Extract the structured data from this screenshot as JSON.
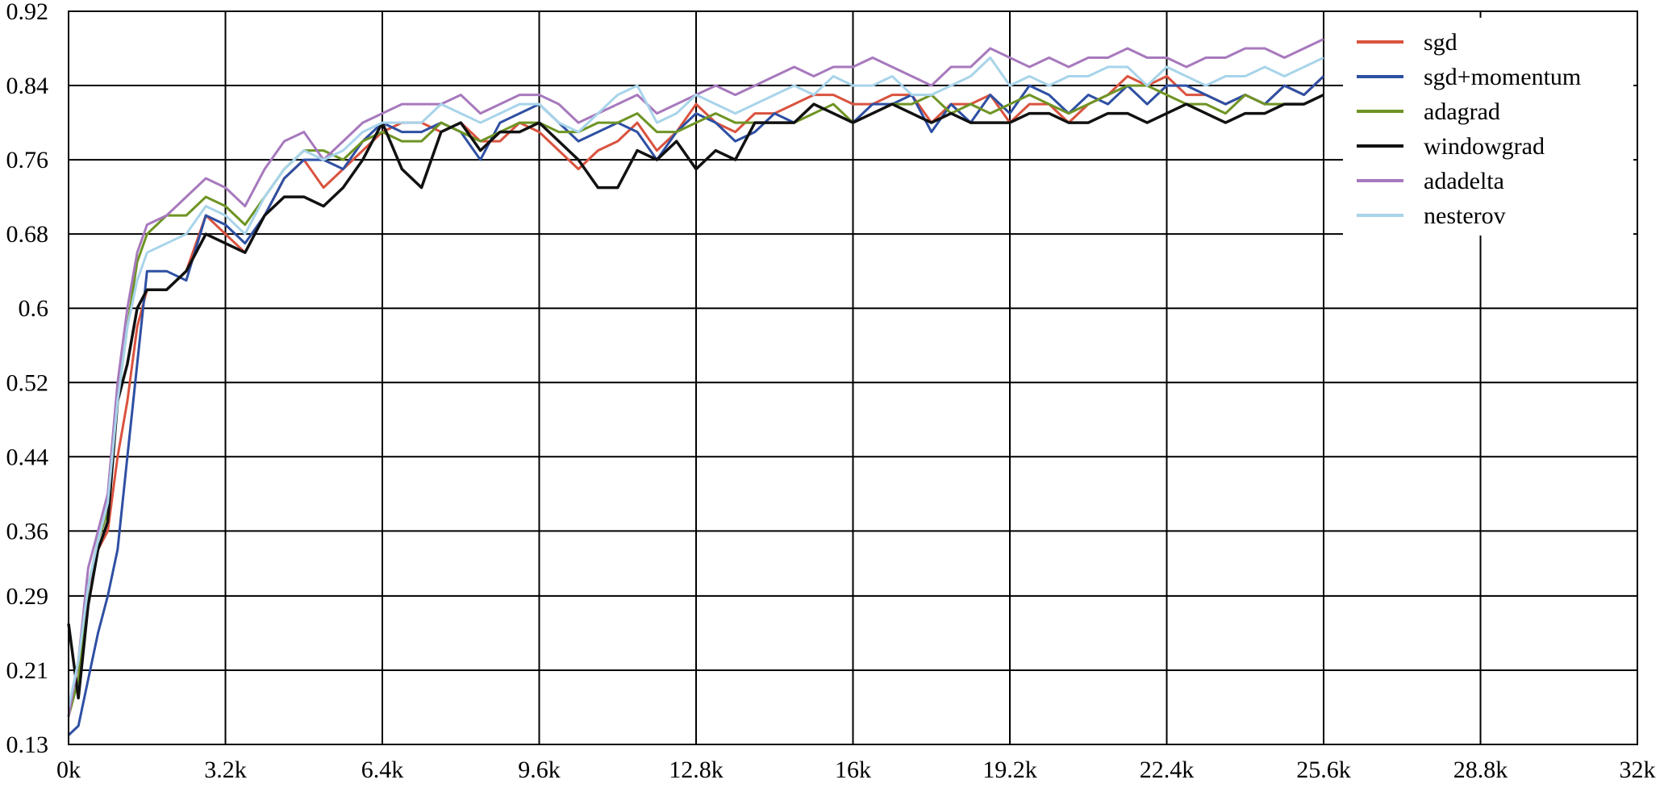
{
  "chart_data": {
    "type": "line",
    "title": "",
    "xlabel": "",
    "ylabel": "",
    "xlim": [
      0,
      32000
    ],
    "ylim": [
      0.13,
      0.92
    ],
    "grid": true,
    "legend_placement": "top-right",
    "x_tick_values": [
      0,
      3200,
      6400,
      9600,
      12800,
      16000,
      19200,
      22400,
      25600,
      28800,
      32000
    ],
    "x_tick_labels": [
      "0k",
      "3.2k",
      "6.4k",
      "9.6k",
      "12.8k",
      "16k",
      "19.2k",
      "22.4k",
      "25.6k",
      "28.8k",
      "32k"
    ],
    "y_tick_values": [
      0.13,
      0.21,
      0.29,
      0.36,
      0.44,
      0.52,
      0.6,
      0.68,
      0.76,
      0.84,
      0.92
    ],
    "y_tick_labels": [
      "0.13",
      "0.21",
      "0.29",
      "0.36",
      "0.44",
      "0.52",
      "0.6",
      "0.68",
      "0.76",
      "0.84",
      "0.92"
    ],
    "x": [
      0,
      200,
      400,
      600,
      800,
      1000,
      1200,
      1400,
      1600,
      2000,
      2400,
      2800,
      3200,
      3600,
      4000,
      4400,
      4800,
      5200,
      5600,
      6000,
      6400,
      6800,
      7200,
      7600,
      8000,
      8400,
      8800,
      9200,
      9600,
      10000,
      10400,
      10800,
      11200,
      11600,
      12000,
      12400,
      12800,
      13200,
      13600,
      14000,
      14400,
      14800,
      15200,
      15600,
      16000,
      16400,
      16800,
      17200,
      17600,
      18000,
      18400,
      18800,
      19200,
      19600,
      20000,
      20400,
      20800,
      21200,
      21600,
      22000,
      22400,
      22800,
      23200,
      23600,
      24000,
      24400,
      24800,
      25200,
      25600
    ],
    "series": [
      {
        "name": "sgd",
        "color": "#d9533f",
        "values": [
          0.16,
          0.22,
          0.3,
          0.34,
          0.36,
          0.44,
          0.5,
          0.58,
          0.62,
          0.62,
          0.64,
          0.7,
          0.68,
          0.66,
          0.7,
          0.74,
          0.76,
          0.73,
          0.75,
          0.77,
          0.79,
          0.8,
          0.8,
          0.79,
          0.8,
          0.78,
          0.78,
          0.8,
          0.79,
          0.77,
          0.75,
          0.77,
          0.78,
          0.8,
          0.77,
          0.79,
          0.82,
          0.8,
          0.79,
          0.81,
          0.81,
          0.82,
          0.83,
          0.83,
          0.82,
          0.82,
          0.83,
          0.83,
          0.8,
          0.82,
          0.82,
          0.83,
          0.8,
          0.82,
          0.82,
          0.8,
          0.82,
          0.83,
          0.85,
          0.84,
          0.85,
          0.83,
          0.83,
          0.82,
          0.83,
          0.82,
          0.84,
          0.83,
          0.85
        ]
      },
      {
        "name": "sgd+momentum",
        "color": "#2e4fa3",
        "values": [
          0.14,
          0.15,
          0.2,
          0.25,
          0.29,
          0.34,
          0.44,
          0.54,
          0.64,
          0.64,
          0.63,
          0.7,
          0.69,
          0.67,
          0.7,
          0.74,
          0.76,
          0.76,
          0.75,
          0.78,
          0.8,
          0.79,
          0.79,
          0.8,
          0.79,
          0.76,
          0.8,
          0.81,
          0.82,
          0.8,
          0.78,
          0.79,
          0.8,
          0.79,
          0.76,
          0.79,
          0.81,
          0.8,
          0.78,
          0.79,
          0.81,
          0.8,
          0.82,
          0.81,
          0.8,
          0.82,
          0.82,
          0.83,
          0.79,
          0.82,
          0.8,
          0.83,
          0.81,
          0.84,
          0.83,
          0.81,
          0.83,
          0.82,
          0.84,
          0.82,
          0.84,
          0.84,
          0.83,
          0.82,
          0.83,
          0.82,
          0.84,
          0.83,
          0.85
        ]
      },
      {
        "name": "adagrad",
        "color": "#6e9424",
        "values": [
          0.16,
          0.2,
          0.3,
          0.35,
          0.38,
          0.5,
          0.58,
          0.65,
          0.68,
          0.7,
          0.7,
          0.72,
          0.71,
          0.69,
          0.72,
          0.75,
          0.77,
          0.77,
          0.76,
          0.78,
          0.79,
          0.78,
          0.78,
          0.8,
          0.79,
          0.78,
          0.79,
          0.8,
          0.8,
          0.79,
          0.79,
          0.8,
          0.8,
          0.81,
          0.79,
          0.79,
          0.8,
          0.81,
          0.8,
          0.8,
          0.8,
          0.8,
          0.81,
          0.82,
          0.8,
          0.81,
          0.82,
          0.82,
          0.83,
          0.81,
          0.82,
          0.81,
          0.82,
          0.83,
          0.82,
          0.81,
          0.82,
          0.83,
          0.84,
          0.84,
          0.83,
          0.82,
          0.82,
          0.81,
          0.83,
          0.82,
          0.82,
          0.82,
          0.83
        ]
      },
      {
        "name": "windowgrad",
        "color": "#111111",
        "values": [
          0.26,
          0.18,
          0.28,
          0.34,
          0.37,
          0.5,
          0.54,
          0.6,
          0.62,
          0.62,
          0.64,
          0.68,
          0.67,
          0.66,
          0.7,
          0.72,
          0.72,
          0.71,
          0.73,
          0.76,
          0.8,
          0.75,
          0.73,
          0.79,
          0.8,
          0.77,
          0.79,
          0.79,
          0.8,
          0.78,
          0.76,
          0.73,
          0.73,
          0.77,
          0.76,
          0.78,
          0.75,
          0.77,
          0.76,
          0.8,
          0.8,
          0.8,
          0.82,
          0.81,
          0.8,
          0.81,
          0.82,
          0.81,
          0.8,
          0.81,
          0.8,
          0.8,
          0.8,
          0.81,
          0.81,
          0.8,
          0.8,
          0.81,
          0.81,
          0.8,
          0.81,
          0.82,
          0.81,
          0.8,
          0.81,
          0.81,
          0.82,
          0.82,
          0.83
        ]
      },
      {
        "name": "adadelta",
        "color": "#a779bd",
        "values": [
          0.16,
          0.22,
          0.32,
          0.36,
          0.4,
          0.52,
          0.6,
          0.66,
          0.69,
          0.7,
          0.72,
          0.74,
          0.73,
          0.71,
          0.75,
          0.78,
          0.79,
          0.76,
          0.78,
          0.8,
          0.81,
          0.82,
          0.82,
          0.82,
          0.83,
          0.81,
          0.82,
          0.83,
          0.83,
          0.82,
          0.8,
          0.81,
          0.82,
          0.83,
          0.81,
          0.82,
          0.83,
          0.84,
          0.83,
          0.84,
          0.85,
          0.86,
          0.85,
          0.86,
          0.86,
          0.87,
          0.86,
          0.85,
          0.84,
          0.86,
          0.86,
          0.88,
          0.87,
          0.86,
          0.87,
          0.86,
          0.87,
          0.87,
          0.88,
          0.87,
          0.87,
          0.86,
          0.87,
          0.87,
          0.88,
          0.88,
          0.87,
          0.88,
          0.89
        ]
      },
      {
        "name": "nesterov",
        "color": "#a8d4ea",
        "values": [
          0.17,
          0.22,
          0.3,
          0.35,
          0.39,
          0.5,
          0.58,
          0.63,
          0.66,
          0.67,
          0.68,
          0.71,
          0.7,
          0.68,
          0.72,
          0.75,
          0.77,
          0.76,
          0.77,
          0.79,
          0.8,
          0.8,
          0.8,
          0.82,
          0.81,
          0.8,
          0.81,
          0.82,
          0.82,
          0.8,
          0.79,
          0.81,
          0.83,
          0.84,
          0.8,
          0.81,
          0.83,
          0.82,
          0.81,
          0.82,
          0.83,
          0.84,
          0.83,
          0.85,
          0.84,
          0.84,
          0.85,
          0.83,
          0.83,
          0.84,
          0.85,
          0.87,
          0.84,
          0.85,
          0.84,
          0.85,
          0.85,
          0.86,
          0.86,
          0.84,
          0.86,
          0.85,
          0.84,
          0.85,
          0.85,
          0.86,
          0.85,
          0.86,
          0.87
        ]
      }
    ]
  }
}
